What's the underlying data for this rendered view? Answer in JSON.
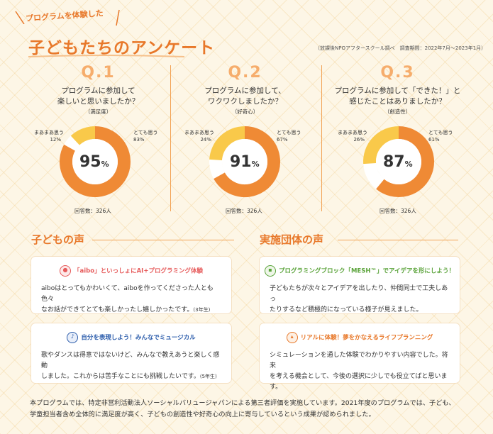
{
  "header": {
    "subtitle": "プログラムを体験した",
    "title": "子どもたちのアンケート",
    "source": "（放課後NPOアフタースクール調べ　調査期間：2022年7月〜2023年1月）"
  },
  "questions": [
    {
      "num": "Q.1",
      "text1": "プログラムに参加して",
      "text2": "楽しいと思いましたか？",
      "sub": "（満足度）",
      "pct": "95",
      "unit": "%",
      "left_label": "まあまあ思う",
      "left_value": "12%",
      "right_label": "とても思う",
      "right_value": "83%",
      "count": "回答数：326人",
      "very": 83,
      "somewhat": 12
    },
    {
      "num": "Q.2",
      "text1": "プログラムに参加して、",
      "text2": "ワクワクしましたか？",
      "sub": "（好奇心）",
      "pct": "91",
      "unit": "%",
      "left_label": "まあまあ思う",
      "left_value": "24%",
      "right_label": "とても思う",
      "right_value": "67%",
      "count": "回答数：326人",
      "very": 67,
      "somewhat": 24
    },
    {
      "num": "Q.3",
      "text1": "プログラムに参加して「できた！」と",
      "text2": "感じたことはありましたか？",
      "sub": "（創造性）",
      "pct": "87",
      "unit": "%",
      "left_label": "まあまあ思う",
      "left_value": "26%",
      "right_label": "とても思う",
      "right_value": "61%",
      "count": "回答数：326人",
      "very": 61,
      "somewhat": 26
    }
  ],
  "colors": {
    "very": "#ef8a35",
    "somewhat": "#f9c94a",
    "rest": "#ffffff",
    "accent": "#e8782a"
  },
  "children": {
    "title": "子どもの声",
    "cards": [
      {
        "icon": "dog-robot-icon",
        "heading": "「aibo」といっしょにAI+プログラミング体験",
        "line1": "aiboはとってもかわいくて、aiboを作ってくださった人とも色々",
        "line2": "なお話ができてとても楽しかったし嬉しかったです。",
        "grade": "(3年生)",
        "color": "#e65a5a"
      },
      {
        "icon": "music-note-icon",
        "heading": "自分を表現しよう！みんなでミュージカル",
        "line1": "歌やダンスは得意ではないけど、みんなで教えあうと楽しく感動",
        "line2": "しました。これからは苦手なことにも挑戦したいです。",
        "grade": "(5年生)",
        "color": "#2b5cab"
      }
    ]
  },
  "orgs": {
    "title": "実施団体の声",
    "cards": [
      {
        "icon": "block-icon",
        "heading": "プログラミングブロック「MESH™」でアイデアを形にしよう！",
        "line1": "子どもたちが次々とアイデアを出したり、仲間同士で工夫しあっ",
        "line2": "たりするなど積極的になっている様子が見えました。",
        "color": "#5aa33a"
      },
      {
        "icon": "chart-icon",
        "heading": "リアルに体験！夢をかなえるライフプランニング",
        "line1": "シミュレーションを通した体験でわかりやすい内容でした。将来",
        "line2": "を考える機会として、今後の選択に少しでも役立てばと思います。",
        "color": "#e8782a"
      }
    ]
  },
  "footer": {
    "line1": "本プログラムでは、特定非営利活動法人ソーシャルバリュージャパンによる第三者評価を実施しています。2021年度のプログラムでは、子ども、",
    "line2": "学童担当者含め全体的に満足度が高く、子どもの創造性や好奇心の向上に寄与しているという成果が認められました。"
  }
}
